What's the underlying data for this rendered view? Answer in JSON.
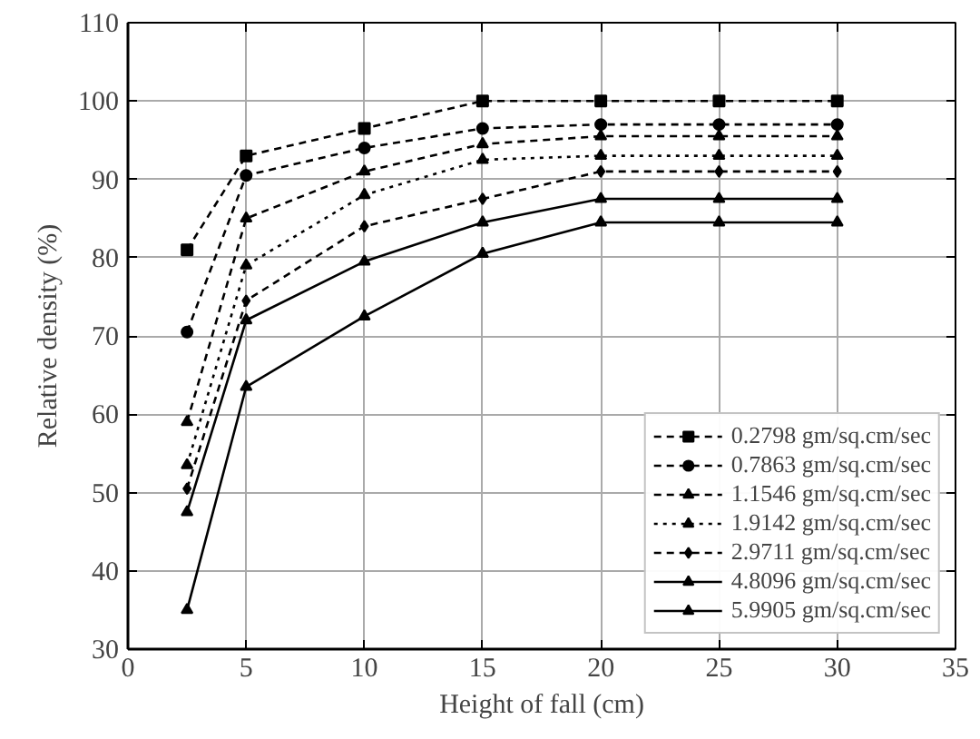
{
  "chart_data": {
    "type": "line",
    "xlabel": "Height of fall (cm)",
    "ylabel": "Relative density (%)",
    "x": [
      2.5,
      5,
      10,
      15,
      20,
      25,
      30
    ],
    "xlim": [
      0,
      35
    ],
    "xticks": [
      0,
      5,
      10,
      15,
      20,
      25,
      30,
      35
    ],
    "ylim": [
      30,
      110
    ],
    "yticks": [
      30,
      40,
      50,
      60,
      70,
      80,
      90,
      100,
      110
    ],
    "grid": true,
    "legend": "bottom right",
    "series": [
      {
        "name": "0.2798 gm/sq.cm/sec",
        "color": "#000000",
        "marker": "square",
        "line_style": "dashed",
        "values": [
          81,
          93,
          96.5,
          100,
          100,
          100,
          100
        ]
      },
      {
        "name": "0.7863 gm/sq.cm/sec",
        "color": "#000000",
        "marker": "circle",
        "line_style": "dashed",
        "values": [
          70.5,
          90.5,
          94,
          96.5,
          97,
          97,
          97
        ]
      },
      {
        "name": "1.1546 gm/sq.cm/sec",
        "color": "#000000",
        "marker": "triangle",
        "line_style": "dashed",
        "values": [
          59,
          85,
          91,
          94.5,
          95.5,
          95.5,
          95.5
        ]
      },
      {
        "name": "1.9142 gm/sq.cm/sec",
        "color": "#000000",
        "marker": "triangle",
        "line_style": "dotted",
        "values": [
          53.5,
          79,
          88,
          92.5,
          93,
          93,
          93
        ]
      },
      {
        "name": "2.9711 gm/sq.cm/sec",
        "color": "#000000",
        "marker": "diamond",
        "line_style": "dashed",
        "values": [
          50.5,
          74.5,
          84,
          87.5,
          91,
          91,
          91
        ]
      },
      {
        "name": "4.8096 gm/sq.cm/sec",
        "color": "#000000",
        "marker": "triangle",
        "line_style": "solid",
        "values": [
          47.5,
          72,
          79.5,
          84.5,
          87.5,
          87.5,
          87.5
        ]
      },
      {
        "name": "5.9905 gm/sq.cm/sec",
        "color": "#000000",
        "marker": "triangle",
        "line_style": "solid",
        "values": [
          35,
          63.5,
          72.5,
          80.5,
          84.5,
          84.5,
          84.5
        ]
      }
    ]
  }
}
